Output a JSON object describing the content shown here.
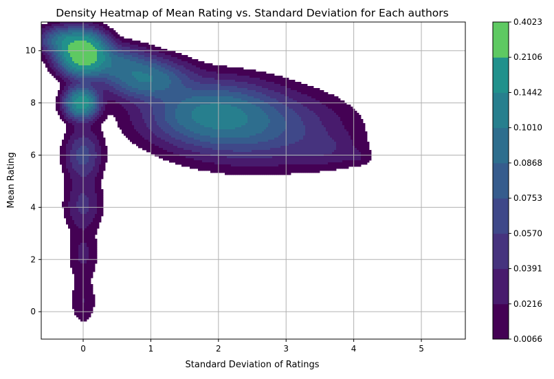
{
  "chart_data": {
    "type": "heatmap",
    "title": "Density Heatmap of Mean Rating vs. Standard Deviation for Each authors",
    "xlabel": "Standard Deviation of Ratings",
    "ylabel": "Mean Rating",
    "xlim": [
      -0.62,
      5.65
    ],
    "ylim": [
      -1.05,
      11.1
    ],
    "xticks": [
      0,
      1,
      2,
      3,
      4,
      5
    ],
    "yticks": [
      0,
      2,
      4,
      6,
      8,
      10
    ],
    "grid": true,
    "colorbar": {
      "levels": [
        "0.0066",
        "0.0216",
        "0.0391",
        "0.0570",
        "0.0753",
        "0.0868",
        "0.1010",
        "0.1442",
        "0.2106",
        "0.4023"
      ],
      "colors": [
        "#440154",
        "#481b6d",
        "#46337e",
        "#3f4889",
        "#365c8d",
        "#2e6e8e",
        "#277f8e",
        "#21918c",
        "#5ec962"
      ]
    },
    "density_blobs": [
      {
        "x": 0.0,
        "y": 9.9,
        "sx": 0.2,
        "sy": 0.45,
        "w": 1.0
      },
      {
        "x": -0.02,
        "y": 8.0,
        "sx": 0.14,
        "sy": 0.35,
        "w": 0.55
      },
      {
        "x": 0.95,
        "y": 8.9,
        "sx": 0.35,
        "sy": 0.45,
        "w": 0.28
      },
      {
        "x": 1.9,
        "y": 7.6,
        "sx": 0.55,
        "sy": 0.7,
        "w": 0.3
      },
      {
        "x": 2.6,
        "y": 7.0,
        "sx": 0.7,
        "sy": 0.8,
        "w": 0.14
      },
      {
        "x": 3.6,
        "y": 6.2,
        "sx": 0.3,
        "sy": 0.4,
        "w": 0.04
      },
      {
        "x": 4.05,
        "y": 5.9,
        "sx": 0.14,
        "sy": 0.2,
        "w": 0.02
      },
      {
        "x": 0.0,
        "y": 6.0,
        "sx": 0.16,
        "sy": 0.6,
        "w": 0.12
      },
      {
        "x": 0.0,
        "y": 4.1,
        "sx": 0.16,
        "sy": 0.6,
        "w": 0.07
      },
      {
        "x": 0.0,
        "y": 2.2,
        "sx": 0.14,
        "sy": 0.6,
        "w": 0.035
      },
      {
        "x": 0.0,
        "y": 0.4,
        "sx": 0.12,
        "sy": 0.55,
        "w": 0.03
      },
      {
        "x": -0.3,
        "y": 10.4,
        "sx": 0.2,
        "sy": 0.3,
        "w": 0.25
      },
      {
        "x": 0.5,
        "y": 9.5,
        "sx": 0.3,
        "sy": 0.4,
        "w": 0.2
      }
    ]
  }
}
